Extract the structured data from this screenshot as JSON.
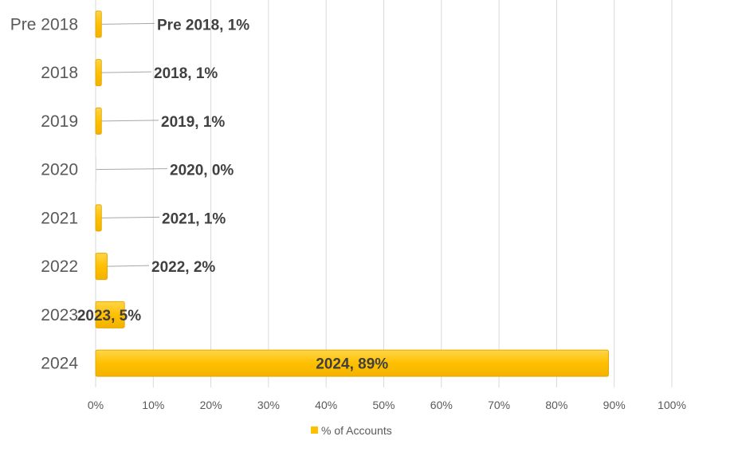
{
  "chart_data": {
    "type": "bar",
    "orientation": "horizontal",
    "categories": [
      "Pre 2018",
      "2018",
      "2019",
      "2020",
      "2021",
      "2022",
      "2023",
      "2024"
    ],
    "series": [
      {
        "name": "% of Accounts",
        "values": [
          1,
          1,
          1,
          0,
          1,
          2,
          5,
          89
        ]
      }
    ],
    "data_labels": [
      "Pre 2018, 1%",
      "2018, 1%",
      "2019, 1%",
      "2020, 0%",
      "2021, 1%",
      "2022, 2%",
      "2023, 5%",
      "2024, 89%"
    ],
    "x_ticks": [
      "0%",
      "10%",
      "20%",
      "30%",
      "40%",
      "50%",
      "60%",
      "70%",
      "80%",
      "90%",
      "100%"
    ],
    "xlim": [
      0,
      100
    ],
    "grid": true,
    "legend_position": "bottom",
    "colors": {
      "bar": "#FFC000",
      "bar_edge": "#E6A800",
      "grid": "#D9D9D9",
      "text": "#595959",
      "label": "#404040"
    }
  }
}
